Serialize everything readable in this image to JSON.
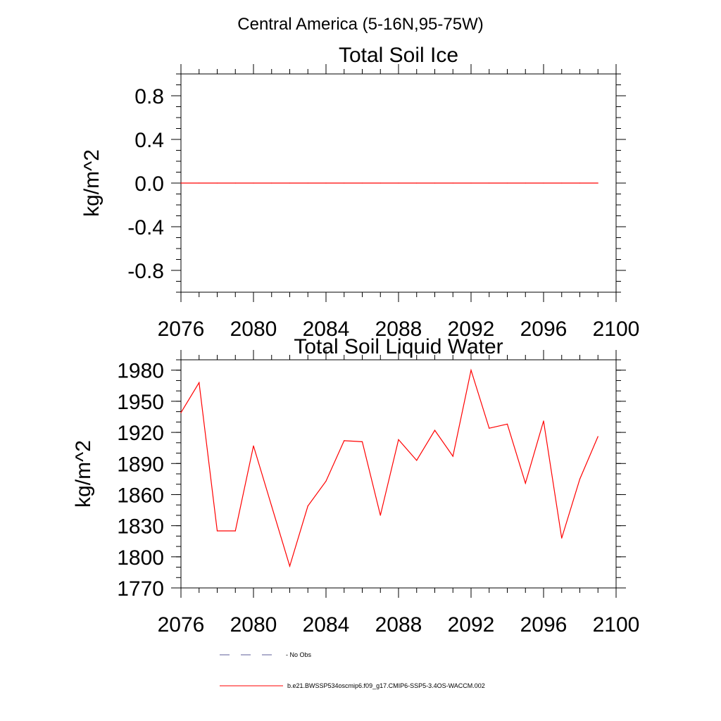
{
  "page_title": "Central America (5-16N,95-75W)",
  "chart_data": [
    {
      "type": "line",
      "title": "Total Soil Ice",
      "xlabel": "",
      "ylabel": "kg/m^2",
      "xlim": [
        2076,
        2100
      ],
      "ylim": [
        -1.0,
        1.0
      ],
      "x_ticks": [
        2076,
        2080,
        2084,
        2088,
        2092,
        2096,
        2100
      ],
      "x_tick_labels": [
        "2076",
        "2080",
        "2084",
        "2088",
        "2092",
        "2096",
        "2100"
      ],
      "y_ticks": [
        -0.8,
        -0.4,
        0.0,
        0.4,
        0.8
      ],
      "y_tick_labels": [
        "-0.8",
        "-0.4",
        "0.0",
        "0.4",
        "0.8"
      ],
      "grid": false,
      "x": [
        2076,
        2077,
        2078,
        2079,
        2080,
        2081,
        2082,
        2083,
        2084,
        2085,
        2086,
        2087,
        2088,
        2089,
        2090,
        2091,
        2092,
        2093,
        2094,
        2095,
        2096,
        2097,
        2098,
        2099
      ],
      "series": [
        {
          "name": "b.e21.BWSSP534oscmip6.f09_g17.CMIP6-SSP5-3.4OS-WACCM.002",
          "color": "#ff0000",
          "values": [
            0,
            0,
            0,
            0,
            0,
            0,
            0,
            0,
            0,
            0,
            0,
            0,
            0,
            0,
            0,
            0,
            0,
            0,
            0,
            0,
            0,
            0,
            0,
            0
          ]
        }
      ]
    },
    {
      "type": "line",
      "title": "Total Soil Liquid Water",
      "xlabel": "",
      "ylabel": "kg/m^2",
      "xlim": [
        2076,
        2100
      ],
      "ylim": [
        1770,
        1990
      ],
      "x_ticks": [
        2076,
        2080,
        2084,
        2088,
        2092,
        2096,
        2100
      ],
      "x_tick_labels": [
        "2076",
        "2080",
        "2084",
        "2088",
        "2092",
        "2096",
        "2100"
      ],
      "y_ticks": [
        1770,
        1800,
        1830,
        1860,
        1890,
        1920,
        1950,
        1980
      ],
      "y_tick_labels": [
        "1770",
        "1800",
        "1830",
        "1860",
        "1890",
        "1920",
        "1950",
        "1980"
      ],
      "grid": false,
      "x": [
        2076,
        2077,
        2078,
        2079,
        2080,
        2081,
        2082,
        2083,
        2084,
        2085,
        2086,
        2087,
        2088,
        2089,
        2090,
        2091,
        2092,
        2093,
        2094,
        2095,
        2096,
        2097,
        2098,
        2099
      ],
      "series": [
        {
          "name": "b.e21.BWSSP534oscmip6.f09_g17.CMIP6-SSP5-3.4OS-WACCM.002",
          "color": "#ff0000",
          "values": [
            1939,
            1968,
            1825,
            1825,
            1907,
            1849,
            1791,
            1849,
            1873,
            1912,
            1911,
            1840,
            1913,
            1893,
            1922,
            1897,
            1980,
            1924,
            1928,
            1871,
            1931,
            1818,
            1875,
            1916
          ]
        }
      ]
    }
  ],
  "legend": {
    "placement": "bottom",
    "items": [
      {
        "label": "No Obs",
        "style": "dashed",
        "color": "#5c5c9a"
      },
      {
        "label": "b.e21.BWSSP534oscmip6.f09_g17.CMIP6-SSP5-3.4OS-WACCM.002",
        "style": "solid",
        "color": "#ff0000"
      }
    ]
  }
}
